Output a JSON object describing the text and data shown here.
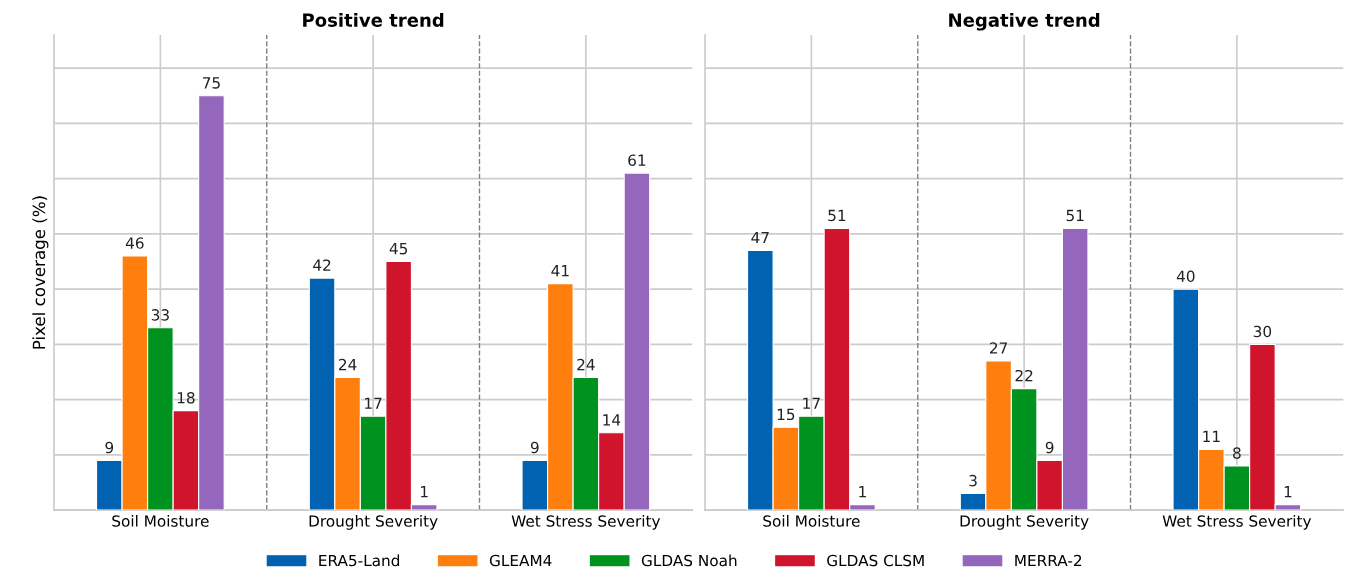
{
  "chart_data": [
    {
      "type": "bar",
      "title": "Positive trend",
      "ylabel": "Pixel coverage (%)",
      "categories": [
        "Soil Moisture",
        "Drought Severity",
        "Wet Stress Severity"
      ],
      "series": [
        {
          "name": "ERA5-Land",
          "color": "#0062b0",
          "values": [
            9,
            42,
            9
          ]
        },
        {
          "name": "GLEAM4",
          "color": "#ff7f0e",
          "values": [
            46,
            24,
            41
          ]
        },
        {
          "name": "GLDAS Noah",
          "color": "#00921e",
          "values": [
            33,
            17,
            24
          ]
        },
        {
          "name": "GLDAS CLSM",
          "color": "#d0142c",
          "values": [
            18,
            45,
            14
          ]
        },
        {
          "name": "MERRA-2",
          "color": "#9467bd",
          "values": [
            75,
            1,
            61
          ]
        }
      ],
      "ylim": [
        0,
        86
      ],
      "yticks": [
        {
          "value": 0,
          "label": null
        },
        {
          "value": 10,
          "label": null
        },
        {
          "value": 20,
          "label": null
        },
        {
          "value": 30,
          "label": null
        },
        {
          "value": 40,
          "label": null
        },
        {
          "value": 50,
          "label": null
        },
        {
          "value": 60,
          "label": null
        },
        {
          "value": 70,
          "label": null
        },
        {
          "value": 80,
          "label": null
        }
      ],
      "tick_labels": "x",
      "grid": true,
      "data_labels": true,
      "legend": "bottom"
    },
    {
      "type": "bar",
      "title": "Negative trend",
      "categories": [
        "Soil Moisture",
        "Drought Severity",
        "Wet Stress Severity"
      ],
      "series": [
        {
          "color": "#0062b0",
          "values": [
            47,
            3,
            40
          ]
        },
        {
          "color": "#ff7f0e",
          "values": [
            15,
            27,
            11
          ]
        },
        {
          "color": "#00921e",
          "values": [
            17,
            22,
            8
          ]
        },
        {
          "color": "#d0142c",
          "values": [
            51,
            9,
            30
          ]
        },
        {
          "color": "#9467bd",
          "values": [
            1,
            51,
            1
          ]
        }
      ],
      "ylim": [
        0,
        86
      ],
      "yticks": [
        {
          "value": 0,
          "label": null
        },
        {
          "value": 10,
          "label": null
        },
        {
          "value": 20,
          "label": null
        },
        {
          "value": 30,
          "label": null
        },
        {
          "value": 40,
          "label": null
        },
        {
          "value": 50,
          "label": null
        },
        {
          "value": 60,
          "label": null
        },
        {
          "value": 70,
          "label": null
        },
        {
          "value": 80,
          "label": null
        }
      ],
      "tick_labels": "x",
      "grid": true,
      "data_labels": true
    }
  ]
}
